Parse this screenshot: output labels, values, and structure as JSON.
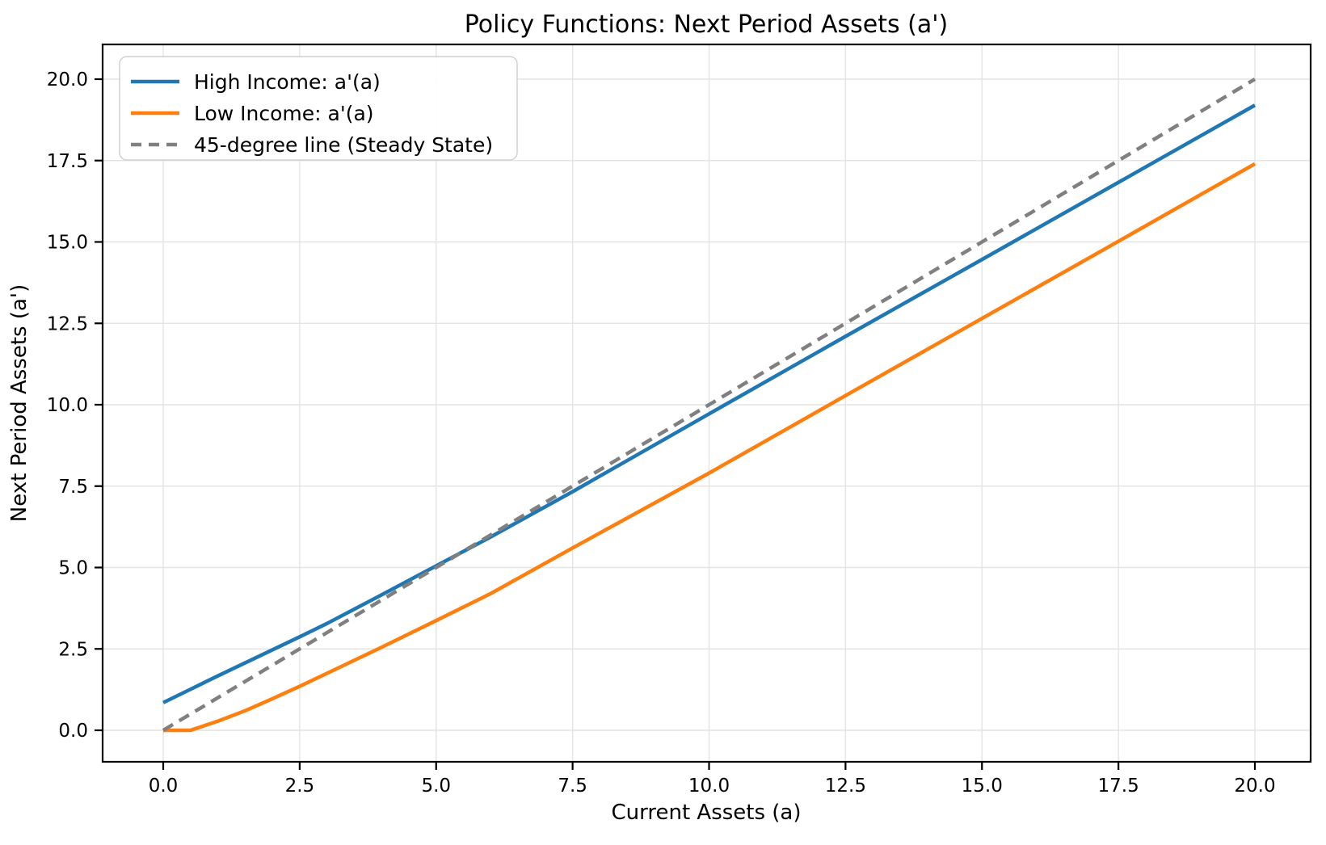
{
  "chart_data": {
    "type": "line",
    "title": "Policy Functions: Next Period Assets (a')",
    "xlabel": "Current Assets (a)",
    "ylabel": "Next Period Assets (a')",
    "xlim": [
      -1.11,
      21.02
    ],
    "ylim": [
      -0.97,
      21.07
    ],
    "xticks": [
      0.0,
      2.5,
      5.0,
      7.5,
      10.0,
      12.5,
      15.0,
      17.5,
      20.0
    ],
    "yticks": [
      0.0,
      2.5,
      5.0,
      7.5,
      10.0,
      12.5,
      15.0,
      17.5,
      20.0
    ],
    "grid": true,
    "legend_position": "upper-left",
    "x": [
      0,
      0.5,
      1,
      1.5,
      2,
      2.5,
      3,
      4,
      5,
      6,
      7.5,
      10,
      12.5,
      15,
      17.5,
      20
    ],
    "series": [
      {
        "name": "High Income: a'(a)",
        "color": "#1f77b4",
        "style": "solid",
        "values": [
          0.85,
          1.26,
          1.67,
          2.07,
          2.47,
          2.87,
          3.28,
          4.16,
          5.05,
          5.94,
          7.33,
          9.72,
          12.1,
          14.46,
          16.83,
          19.2
        ]
      },
      {
        "name": "Low Income: a'(a)",
        "color": "#ff7f0e",
        "style": "solid",
        "values": [
          0.0,
          0.0,
          0.28,
          0.6,
          0.97,
          1.35,
          1.75,
          2.55,
          3.37,
          4.2,
          5.6,
          7.9,
          10.28,
          12.65,
          15.02,
          17.4
        ]
      },
      {
        "name": "45-degree line (Steady State)",
        "color": "#808080",
        "style": "dashed",
        "values": [
          0,
          0.5,
          1,
          1.5,
          2,
          2.5,
          3,
          4,
          5,
          6,
          7.5,
          10,
          12.5,
          15,
          17.5,
          20
        ]
      }
    ]
  }
}
